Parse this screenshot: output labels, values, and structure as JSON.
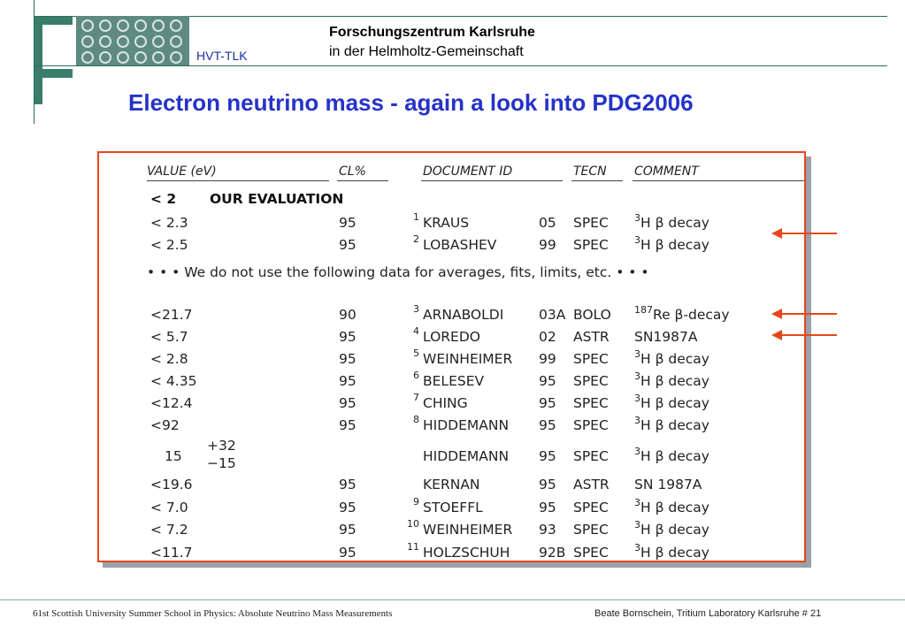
{
  "header": {
    "org_name": "Forschungszentrum Karlsruhe",
    "org_sub": "in  der  Helmholtz-Gemeinschaft",
    "dept": "HVT-TLK"
  },
  "title": "Electron neutrino mass - again a look into PDG2006",
  "table": {
    "headers": {
      "value": "VALUE (eV)",
      "cl": "CL%",
      "doc": "DOCUMENT ID",
      "tecn": "TECN",
      "comment": "COMMENT"
    },
    "evaluation": {
      "value": "< 2",
      "label": "OUR EVALUATION"
    },
    "rows_main": [
      {
        "value": "<  2.3",
        "cl": "95",
        "ref": "1",
        "doc": "KRAUS",
        "year": "05",
        "tecn": "SPEC",
        "csup": "3",
        "comment": "H β decay"
      },
      {
        "value": "<  2.5",
        "cl": "95",
        "ref": "2",
        "doc": "LOBASHEV",
        "year": "99",
        "tecn": "SPEC",
        "csup": "3",
        "comment": "H β decay"
      }
    ],
    "note": "• • • We do not use the following data for averages, fits, limits, etc. • • •",
    "rows_other": [
      {
        "value": "<21.7",
        "cl": "90",
        "ref": "3",
        "doc": "ARNABOLDI",
        "year": "03A",
        "tecn": "BOLO",
        "csup": "187",
        "comment": "Re β-decay"
      },
      {
        "value": "<  5.7",
        "cl": "95",
        "ref": "4",
        "doc": "LOREDO",
        "year": "02",
        "tecn": "ASTR",
        "csup": "",
        "comment": "SN1987A"
      },
      {
        "value": "<  2.8",
        "cl": "95",
        "ref": "5",
        "doc": "WEINHEIMER",
        "year": "99",
        "tecn": "SPEC",
        "csup": "3",
        "comment": "H β decay"
      },
      {
        "value": "<  4.35",
        "cl": "95",
        "ref": "6",
        "doc": "BELESEV",
        "year": "95",
        "tecn": "SPEC",
        "csup": "3",
        "comment": "H β decay"
      },
      {
        "value": "<12.4",
        "cl": "95",
        "ref": "7",
        "doc": "CHING",
        "year": "95",
        "tecn": "SPEC",
        "csup": "3",
        "comment": "H β decay"
      },
      {
        "value": "<92",
        "cl": "95",
        "ref": "8",
        "doc": "HIDDEMANN",
        "year": "95",
        "tecn": "SPEC",
        "csup": "3",
        "comment": "H β decay"
      }
    ],
    "row_hiddemann2": {
      "value": "15",
      "err_plus": "+32",
      "err_minus": "−15",
      "doc": "HIDDEMANN",
      "year": "95",
      "tecn": "SPEC",
      "csup": "3",
      "comment": "H β decay"
    },
    "rows_tail": [
      {
        "value": "<19.6",
        "cl": "95",
        "ref": "",
        "doc": "KERNAN",
        "year": "95",
        "tecn": "ASTR",
        "csup": "",
        "comment": "SN 1987A"
      },
      {
        "value": "<  7.0",
        "cl": "95",
        "ref": "9",
        "doc": "STOEFFL",
        "year": "95",
        "tecn": "SPEC",
        "csup": "3",
        "comment": "H β decay"
      },
      {
        "value": "<  7.2",
        "cl": "95",
        "ref": "10",
        "doc": "WEINHEIMER",
        "year": "93",
        "tecn": "SPEC",
        "csup": "3",
        "comment": "H β decay"
      },
      {
        "value": "<11.7",
        "cl": "95",
        "ref": "11",
        "doc": "HOLZSCHUH",
        "year": "92B",
        "tecn": "SPEC",
        "csup": "3",
        "comment": "H β decay"
      }
    ]
  },
  "footer": {
    "left": "61st Scottish University Summer School in Physics: Absolute Neutrino Mass Measurements",
    "right": "Beate Bornschein, Tritium Laboratory Karlsruhe   # 21"
  },
  "colors": {
    "title": "#2633c8",
    "accent": "#e8471d",
    "logo": "#3a7d6b"
  }
}
